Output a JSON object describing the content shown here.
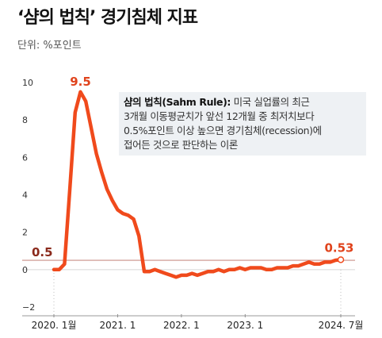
{
  "title": "‘샴의 법칙’ 경기침체 지표",
  "unit_label": "단위: %포인트",
  "annotation": {
    "term": "샴의 법칙(Sahm Rule)",
    "separator": ":",
    "line1": "미국 실업률의 최근",
    "line2": "3개월 이동평균치가 앞선 12개월 중 최저치보다",
    "line3": "0.5%포인트 이상 높으면 경기침체(recession)에",
    "line4": "접어든 것으로 판단하는 이론"
  },
  "colors": {
    "series": "#f04a1c",
    "threshold_value": "#8b2a1c",
    "highlight": "#e0431c",
    "axis_text": "#333333",
    "gridline": "#d6d6d6",
    "threshold_line": "#c98f86"
  },
  "chart_data": {
    "type": "line",
    "ylim": [
      -2,
      10
    ],
    "yticks": [
      "10",
      "8",
      "6",
      "4",
      "2",
      "0",
      "−2"
    ],
    "ytick_values": [
      10,
      8,
      6,
      4,
      2,
      0,
      -2
    ],
    "xlim": [
      "2020-01",
      "2024-07"
    ],
    "xtick_labels": [
      "2020. 1월",
      "2021. 1",
      "2022. 1",
      "2023. 1",
      "2024. 7월"
    ],
    "xtick_dates": [
      "2020-01",
      "2021-01",
      "2022-01",
      "2023-01",
      "2024-07"
    ],
    "threshold": 0.5,
    "threshold_label": "0.5",
    "peak_label": "9.5",
    "last_label": "0.53",
    "series": [
      {
        "x": [
          "2020-01",
          "2020-02",
          "2020-03",
          "2020-04",
          "2020-05",
          "2020-06",
          "2020-07",
          "2020-08",
          "2020-09",
          "2020-10",
          "2020-11",
          "2020-12",
          "2021-01",
          "2021-02",
          "2021-03",
          "2021-04",
          "2021-05",
          "2021-06",
          "2021-07",
          "2021-08",
          "2021-09",
          "2021-10",
          "2021-11",
          "2021-12",
          "2022-01",
          "2022-02",
          "2022-03",
          "2022-04",
          "2022-05",
          "2022-06",
          "2022-07",
          "2022-08",
          "2022-09",
          "2022-10",
          "2022-11",
          "2022-12",
          "2023-01",
          "2023-02",
          "2023-03",
          "2023-04",
          "2023-05",
          "2023-06",
          "2023-07",
          "2023-08",
          "2023-09",
          "2023-10",
          "2023-11",
          "2023-12",
          "2024-01",
          "2024-02",
          "2024-03",
          "2024-04",
          "2024-05",
          "2024-06",
          "2024-07"
        ],
        "y": [
          0.0,
          0.0,
          0.3,
          4.3,
          8.4,
          9.5,
          9.0,
          7.6,
          6.2,
          5.2,
          4.3,
          3.7,
          3.2,
          3.0,
          2.9,
          2.7,
          1.8,
          -0.1,
          -0.1,
          0.0,
          -0.1,
          -0.2,
          -0.3,
          -0.4,
          -0.3,
          -0.3,
          -0.2,
          -0.3,
          -0.2,
          -0.1,
          -0.1,
          0.0,
          -0.1,
          0.0,
          0.0,
          0.1,
          0.0,
          0.1,
          0.1,
          0.1,
          0.0,
          0.0,
          0.1,
          0.1,
          0.1,
          0.2,
          0.2,
          0.3,
          0.4,
          0.3,
          0.3,
          0.4,
          0.4,
          0.5,
          0.53
        ]
      }
    ]
  }
}
